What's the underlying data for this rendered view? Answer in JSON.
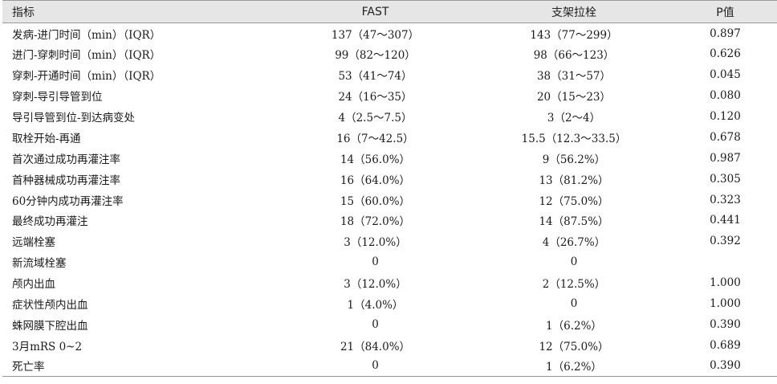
{
  "table": {
    "headers": {
      "indicator": "指标",
      "fast": "FAST",
      "stent": "支架拉栓",
      "p": "P值"
    },
    "rows": [
      {
        "name": "发病-进门时间（min）（IQR）",
        "fast": "137（47～307）",
        "stent": "143（77～299）",
        "p": "0.897"
      },
      {
        "name": "进门-穿刺时间（min）（IQR）",
        "fast": "99（82～120）",
        "stent": "98（66～123）",
        "p": "0.626"
      },
      {
        "name": "穿刺-开通时间（min）（IQR）",
        "fast": "53（41～74）",
        "stent": "38（31～57）",
        "p": "0.045"
      },
      {
        "name": "穿刺-导引导管到位",
        "fast": "24（16～35）",
        "stent": "20（15～23）",
        "p": "0.080"
      },
      {
        "name": "导引导管到位-到达病变处",
        "fast": "4（2.5～7.5）",
        "stent": "3（2～4）",
        "p": "0.120"
      },
      {
        "name": "取栓开始-再通",
        "fast": "16（7～42.5）",
        "stent": "15.5（12.3～33.5）",
        "p": "0.678"
      },
      {
        "name": "首次通过成功再灌注率",
        "fast": "14（56.0%）",
        "stent": "9（56.2%）",
        "p": "0.987"
      },
      {
        "name": "首种器械成功再灌注率",
        "fast": "16（64.0%）",
        "stent": "13（81.2%）",
        "p": "0.305"
      },
      {
        "name": "60分钟内成功再灌注率",
        "fast": "15（60.0%）",
        "stent": "12（75.0%）",
        "p": "0.323"
      },
      {
        "name": "最终成功再灌注",
        "fast": "18（72.0%）",
        "stent": "14（87.5%）",
        "p": "0.441"
      },
      {
        "name": "远端栓塞",
        "fast": "3（12.0%）",
        "stent": "4（26.7%）",
        "p": "0.392"
      },
      {
        "name": "新流域栓塞",
        "fast": "0",
        "stent": "0",
        "p": ""
      },
      {
        "name": "颅内出血",
        "fast": "3（12.0%）",
        "stent": "2（12.5%）",
        "p": "1.000"
      },
      {
        "name": "症状性颅内出血",
        "fast": "1（4.0%）",
        "stent": "0",
        "p": "1.000"
      },
      {
        "name": "蛛网膜下腔出血",
        "fast": "0",
        "stent": "1（6.2%）",
        "p": "0.390"
      },
      {
        "name": "3月mRS 0~2",
        "fast": "21（84.0%）",
        "stent": "12（75.0%）",
        "p": "0.689"
      },
      {
        "name": "死亡率",
        "fast": "0",
        "stent": "1（6.2%）",
        "p": "0.390"
      }
    ]
  }
}
